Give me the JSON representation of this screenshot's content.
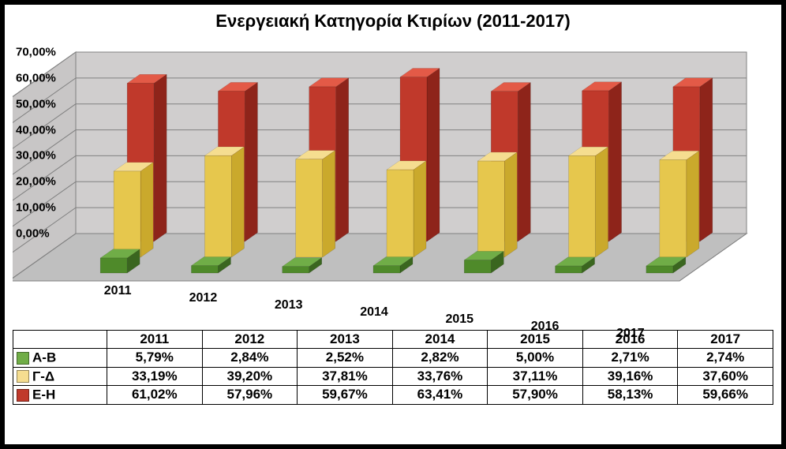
{
  "chart": {
    "title": "Ενεργειακή Κατηγορία Κτιρίων (2011-2017)",
    "title_fontsize": 22,
    "type": "bar-3d-clustered",
    "categories": [
      "2011",
      "2012",
      "2013",
      "2014",
      "2015",
      "2016",
      "2017"
    ],
    "series": [
      {
        "name": "Α-Β",
        "color_top": "#70ad47",
        "color_front": "#4f8a2a",
        "color_side": "#3a661f",
        "swatch": "#70ad47",
        "values": [
          5.79,
          2.84,
          2.52,
          2.82,
          5.0,
          2.71,
          2.74
        ],
        "labels": [
          "5,79%",
          "2,84%",
          "2,52%",
          "2,82%",
          "5,00%",
          "2,71%",
          "2,74%"
        ]
      },
      {
        "name": "Γ-Δ",
        "color_top": "#f5dd90",
        "color_front": "#e6c74d",
        "color_side": "#caa92c",
        "swatch": "#f5dd90",
        "values": [
          33.19,
          39.2,
          37.81,
          33.76,
          37.11,
          39.16,
          37.6
        ],
        "labels": [
          "33,19%",
          "39,20%",
          "37,81%",
          "33,76%",
          "37,11%",
          "39,16%",
          "37,60%"
        ]
      },
      {
        "name": "Ε-Η",
        "color_top": "#e35a47",
        "color_front": "#c0392b",
        "color_side": "#8e241a",
        "swatch": "#c0392b",
        "values": [
          61.02,
          57.96,
          59.67,
          63.41,
          57.9,
          58.13,
          59.66
        ],
        "labels": [
          "61,02%",
          "57,96%",
          "59,67%",
          "63,41%",
          "57,90%",
          "58,13%",
          "59,66%"
        ]
      }
    ],
    "y_axis": {
      "min": 0,
      "max": 70,
      "ticks": [
        0,
        10,
        20,
        30,
        40,
        50,
        60,
        70
      ],
      "tick_labels": [
        "0,00%",
        "10,00%",
        "20,00%",
        "30,00%",
        "40,00%",
        "50,00%",
        "60,00%",
        "70,00%"
      ]
    },
    "colors": {
      "background": "#ffffff",
      "wall_fill": "#d0cece",
      "wall_stroke": "#808080",
      "floor_fill": "#bfbfbf",
      "grid": "#808080"
    },
    "label_fontsize": 15,
    "category_fontsize": 16,
    "perspective": {
      "depth_rows": 3,
      "vanishing": true
    }
  },
  "table": {
    "header": [
      "",
      "2011",
      "2012",
      "2013",
      "2014",
      "2015",
      "2016",
      "2017"
    ]
  }
}
